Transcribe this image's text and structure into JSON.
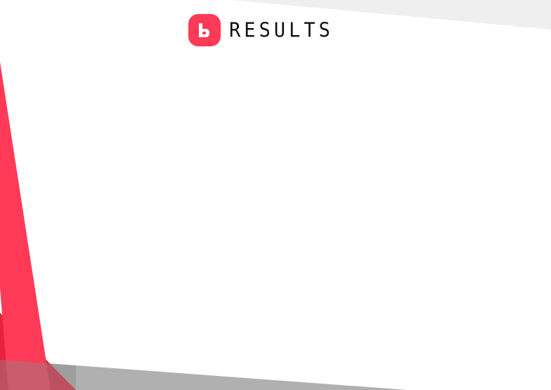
{
  "header": {
    "logo_icon": "b-logo-icon",
    "title": "RESULTS"
  },
  "colors": {
    "accent": "#ff3a57",
    "accent_dark": "#e8223c",
    "top_band": "#efefef",
    "bottom_band": "#b3b3b3",
    "background": "#ffffff"
  }
}
